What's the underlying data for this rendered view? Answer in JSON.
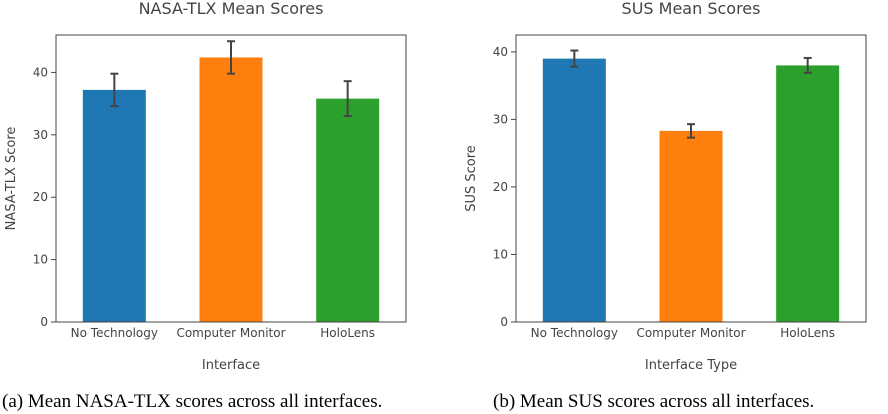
{
  "chart_data": [
    {
      "type": "bar",
      "title": "NASA-TLX Mean Scores",
      "xlabel": "Interface",
      "ylabel": "NASA-TLX Score",
      "categories": [
        "No Technology",
        "Computer Monitor",
        "HoloLens"
      ],
      "values": [
        37.2,
        42.4,
        35.8
      ],
      "error": [
        2.6,
        2.6,
        2.8
      ],
      "colors": [
        "#1f77b4",
        "#ff7f0e",
        "#2ca02c"
      ],
      "yticks": [
        0,
        10,
        20,
        30,
        40
      ],
      "ylim": [
        0,
        46
      ],
      "grid": false
    },
    {
      "type": "bar",
      "title": "SUS Mean Scores",
      "xlabel": "Interface Type",
      "ylabel": "SUS Score",
      "categories": [
        "No Technology",
        "Computer Monitor",
        "HoloLens"
      ],
      "values": [
        39.0,
        28.3,
        38.0
      ],
      "error": [
        1.2,
        1.0,
        1.1
      ],
      "colors": [
        "#1f77b4",
        "#ff7f0e",
        "#2ca02c"
      ],
      "yticks": [
        0,
        10,
        20,
        30,
        40
      ],
      "ylim": [
        0,
        42.5
      ],
      "grid": false
    }
  ],
  "captions": {
    "a": "(a) Mean NASA-TLX scores across all interfaces.",
    "b": "(b) Mean SUS scores across all interfaces."
  }
}
